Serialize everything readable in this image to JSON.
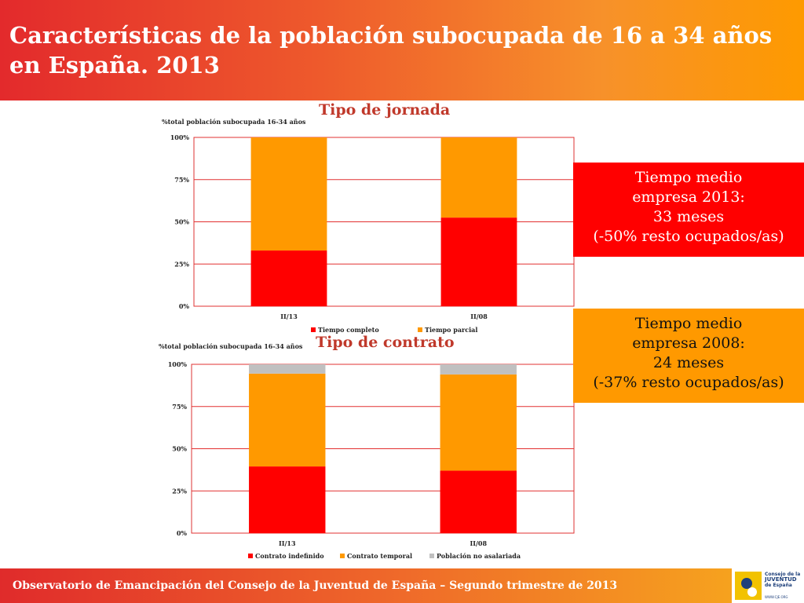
{
  "header": {
    "title": "Características de la población subocupada de 16 a 34 años en España. 2013"
  },
  "boxes": [
    {
      "lines": [
        "Tiempo medio",
        "empresa 2013:",
        "33 meses",
        "(-50% resto ocupados/as)"
      ],
      "color": "#ff0000"
    },
    {
      "lines": [
        "Tiempo medio",
        "empresa 2008:",
        "24 meses",
        "(-37% resto ocupados/as)"
      ],
      "color": "#ff9900"
    }
  ],
  "footer": {
    "text": "Observatorio de Emancipación del Consejo de la Juventud de España – Segundo trimestre de 2013"
  },
  "logo": {
    "line1": "Consejo de la",
    "line2": "JUVENTUD",
    "line3": "de España",
    "url": "WWW.CJE.ORG"
  },
  "chart_data": [
    {
      "type": "bar",
      "stacked": true,
      "title": "Tipo de jornada",
      "ylabel": "%total población subocupada 16-34 años",
      "categories": [
        "II/13",
        "II/08"
      ],
      "ylim": [
        0,
        100
      ],
      "yticks": [
        "0%",
        "25%",
        "50%",
        "75%",
        "100%"
      ],
      "grid": true,
      "legend": "bottom",
      "series": [
        {
          "name": "Tiempo completo",
          "values": [
            33,
            52.5
          ],
          "color": "#ff0000"
        },
        {
          "name": "Tiempo parcial",
          "values": [
            67,
            47.5
          ],
          "color": "#ff9900"
        }
      ]
    },
    {
      "type": "bar",
      "stacked": true,
      "title": "Tipo de contrato",
      "ylabel": "%total población subocupada 16-34 años",
      "categories": [
        "II/13",
        "II/08"
      ],
      "ylim": [
        0,
        100
      ],
      "yticks": [
        "0%",
        "25%",
        "50%",
        "75%",
        "100%"
      ],
      "grid": true,
      "legend": "bottom",
      "series": [
        {
          "name": "Contrato indefinido",
          "values": [
            39.5,
            37
          ],
          "color": "#ff0000"
        },
        {
          "name": "Contrato temporal",
          "values": [
            55,
            57
          ],
          "color": "#ff9900"
        },
        {
          "name": "Población no asalariada",
          "values": [
            5.5,
            6
          ],
          "color": "#c0c0c0"
        }
      ]
    }
  ]
}
